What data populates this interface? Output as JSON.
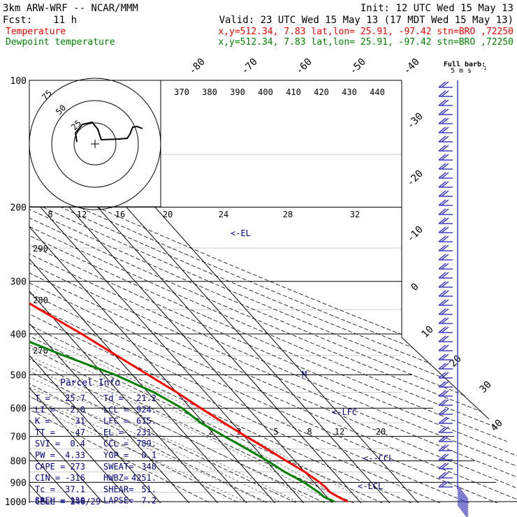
{
  "header": {
    "model": "3km ARW-WRF -- NCAR/MMM",
    "init": "Init: 12 UTC Wed 15 May 13",
    "fcst_label": "Fcst:",
    "fcst_hours": "11 h",
    "valid": "Valid: 23 UTC Wed 15 May 13 (17 MDT Wed 15 May 13)",
    "temp_label": "Temperature",
    "temp_info": "x,y=512.34,  7.83   lat,lon= 25.91, -97.42  stn=BRO ,72250",
    "dew_label": "Dewpoint temperature",
    "dew_info": "x,y=512.34,  7.83   lat,lon= 25.91, -97.42  stn=BRO ,72250"
  },
  "colors": {
    "temperature": "#ff0000",
    "dewpoint": "#008000",
    "grid": "#000000",
    "wind_barbs": "#4040c0",
    "hodograph_trace": "#000000",
    "labels": "#000080"
  },
  "chart_data": {
    "type": "skew-t",
    "pressure_levels": [
      100,
      200,
      300,
      400,
      500,
      600,
      700,
      800,
      900,
      1000
    ],
    "pressure_labels": [
      "100",
      "200",
      "300",
      "400",
      "500",
      "600",
      "700",
      "800",
      "900",
      "1000"
    ],
    "isotherm_labels": [
      "-80",
      "-70",
      "-60",
      "-50",
      "-40",
      "-30",
      "-20",
      "-10",
      "0",
      "10",
      "20",
      "30",
      "40"
    ],
    "theta_labels": [
      "370",
      "380",
      "390",
      "400",
      "410",
      "420",
      "430",
      "440"
    ],
    "mixing_ratio_top_labels": [
      "8",
      "12",
      "16",
      "20",
      "24",
      "28",
      "32"
    ],
    "mixing_ratio_bottom_labels": [
      "2",
      "3",
      "5",
      "8",
      "12",
      "20"
    ],
    "dry_adiabat_left_labels": [
      "290",
      "280",
      "270"
    ],
    "level_markers": [
      "<-EL",
      "M",
      "<-LFC",
      "<--CCL",
      "<-LCL"
    ],
    "temperature": [
      {
        "p": 1000,
        "t": 25.7
      },
      {
        "p": 975,
        "t": 24.0
      },
      {
        "p": 950,
        "t": 22.5
      },
      {
        "p": 925,
        "t": 22.5
      },
      {
        "p": 900,
        "t": 22.0
      },
      {
        "p": 850,
        "t": 20.0
      },
      {
        "p": 800,
        "t": 17.0
      },
      {
        "p": 750,
        "t": 14.0
      },
      {
        "p": 700,
        "t": 10.5
      },
      {
        "p": 650,
        "t": 7.0
      },
      {
        "p": 600,
        "t": 3.5
      },
      {
        "p": 550,
        "t": 0.0
      },
      {
        "p": 500,
        "t": -4.5
      },
      {
        "p": 450,
        "t": -9.5
      },
      {
        "p": 400,
        "t": -15.0
      },
      {
        "p": 350,
        "t": -22.0
      },
      {
        "p": 300,
        "t": -30.0
      },
      {
        "p": 250,
        "t": -40.0
      },
      {
        "p": 200,
        "t": -52.0
      },
      {
        "p": 175,
        "t": -60.0
      },
      {
        "p": 150,
        "t": -67.0
      },
      {
        "p": 125,
        "t": -72.0
      },
      {
        "p": 100,
        "t": -75.0
      }
    ],
    "dewpoint": [
      {
        "p": 1000,
        "t": 21.2
      },
      {
        "p": 975,
        "t": 19.0
      },
      {
        "p": 950,
        "t": 18.5
      },
      {
        "p": 900,
        "t": 16.5
      },
      {
        "p": 850,
        "t": 13.0
      },
      {
        "p": 800,
        "t": 10.5
      },
      {
        "p": 750,
        "t": 7.0
      },
      {
        "p": 700,
        "t": 3.0
      },
      {
        "p": 650,
        "t": -1.0
      },
      {
        "p": 600,
        "t": -3.0
      },
      {
        "p": 550,
        "t": -8.0
      },
      {
        "p": 500,
        "t": -16.0
      },
      {
        "p": 450,
        "t": -28.0
      },
      {
        "p": 400,
        "t": -40.0
      },
      {
        "p": 350,
        "t": -48.0
      },
      {
        "p": 300,
        "t": -55.0
      },
      {
        "p": 250,
        "t": -65.0
      },
      {
        "p": 200,
        "t": -76.0
      },
      {
        "p": 175,
        "t": -84.0
      },
      {
        "p": 150,
        "t": -92.0
      },
      {
        "p": 125,
        "t": -94.0
      },
      {
        "p": 100,
        "t": -90.0
      }
    ],
    "wind_barb_legend": {
      "title": "Full barb:",
      "value": "5 m s",
      "superscript": "-1"
    },
    "hodograph": {
      "units": "kts",
      "ring_labels": [
        "25",
        "50",
        "75"
      ]
    }
  },
  "parcel_info": {
    "title": "Parcel Info",
    "rows": [
      [
        "T   =",
        "25.7",
        "Td  =",
        "21.2"
      ],
      [
        "LI  =",
        "-2.0",
        "LCL =",
        "924."
      ],
      [
        "K   =",
        "31",
        "LFC =",
        "615."
      ],
      [
        "TT  =",
        "47",
        "EL  =",
        "231."
      ],
      [
        "SVI =",
        "0.4",
        "CCL =",
        "789."
      ],
      [
        "PW  =",
        "4.33",
        "YGP =",
        "0.1"
      ],
      [
        "CAPE =",
        "273",
        "SWEAT=",
        "348"
      ],
      [
        "CIN  =",
        "-316",
        "HWBZ=",
        "4251."
      ],
      [
        "Tc  =",
        "37.1",
        "SHEAR=",
        "51."
      ],
      [
        "SREH =",
        "150",
        "LAPSE=",
        "7.2"
      ]
    ],
    "cell": "CELL = 246/29"
  }
}
